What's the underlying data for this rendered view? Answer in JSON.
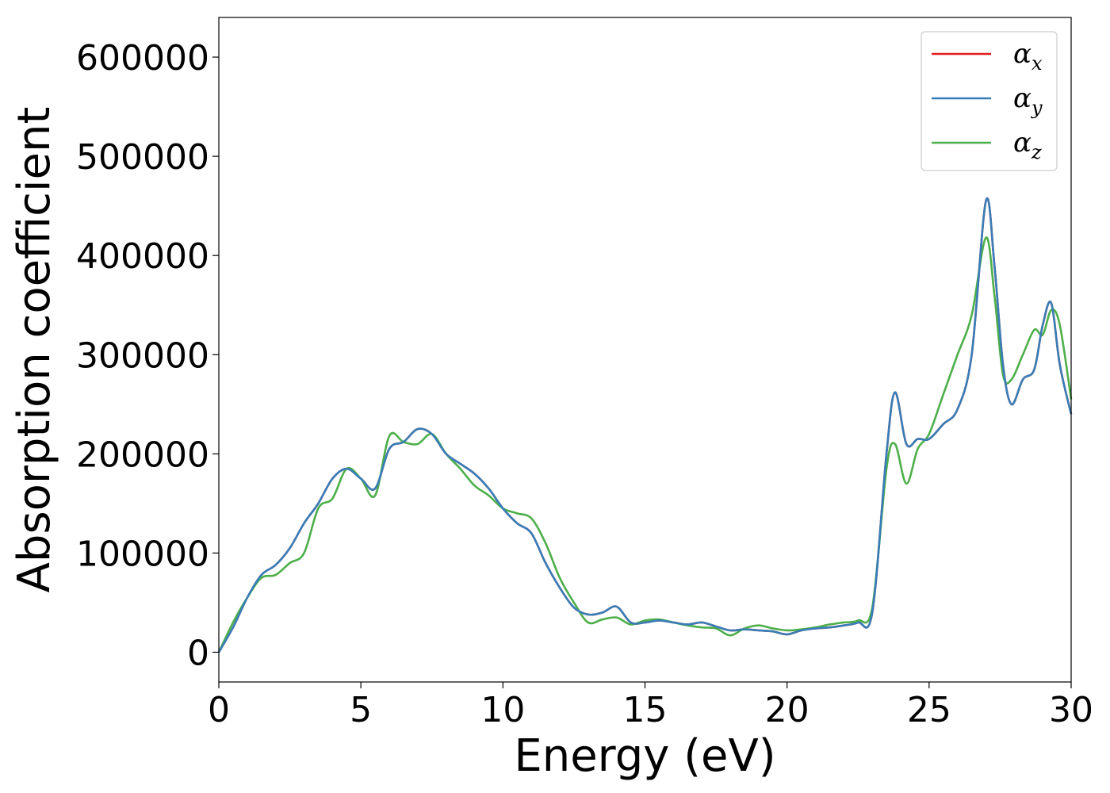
{
  "chart_data": {
    "type": "line",
    "xlabel": "Energy (eV)",
    "ylabel": "Absorption coefficient",
    "xlim": [
      0,
      30
    ],
    "ylim": [
      -30000,
      640000
    ],
    "xticks": [
      0,
      5,
      10,
      15,
      20,
      25,
      30
    ],
    "xtick_labels": [
      "0",
      "5",
      "10",
      "15",
      "20",
      "25",
      "30"
    ],
    "yticks": [
      0,
      100000,
      200000,
      300000,
      400000,
      500000,
      600000
    ],
    "ytick_labels": [
      "0",
      "100000",
      "200000",
      "300000",
      "400000",
      "500000",
      "600000"
    ],
    "grid": false,
    "legend_position": "top-right",
    "series": [
      {
        "name": "α_x",
        "legend_base": "α",
        "legend_sub": "x",
        "color": "#e41a1c",
        "x": [
          0,
          0.5,
          1,
          1.5,
          2,
          2.5,
          3,
          3.5,
          4,
          4.5,
          5,
          5.5,
          6,
          6.5,
          7,
          7.5,
          8,
          8.5,
          9,
          9.5,
          10,
          10.5,
          11,
          11.5,
          12,
          12.5,
          13,
          13.5,
          14,
          14.5,
          15,
          15.5,
          16,
          16.5,
          17,
          17.5,
          18,
          18.5,
          19,
          19.5,
          20,
          20.5,
          21,
          21.5,
          22,
          22.5,
          23,
          23.5,
          23.8,
          24.2,
          24.6,
          25,
          25.5,
          26,
          26.5,
          27,
          27.3,
          27.6,
          27.9,
          28.3,
          28.7,
          29,
          29.3,
          29.6,
          30
        ],
        "y": [
          0,
          25000,
          55000,
          78000,
          88000,
          105000,
          130000,
          150000,
          175000,
          185000,
          175000,
          165000,
          205000,
          212000,
          225000,
          220000,
          200000,
          190000,
          180000,
          165000,
          145000,
          130000,
          120000,
          90000,
          65000,
          45000,
          38000,
          40000,
          46000,
          30000,
          30000,
          32000,
          30000,
          28000,
          30000,
          26000,
          22000,
          23000,
          22000,
          21000,
          18000,
          22000,
          24000,
          25000,
          27000,
          30000,
          40000,
          200000,
          262000,
          210000,
          215000,
          215000,
          230000,
          245000,
          300000,
          455000,
          390000,
          290000,
          250000,
          275000,
          285000,
          330000,
          352000,
          290000,
          240000
        ]
      },
      {
        "name": "α_y",
        "legend_base": "α",
        "legend_sub": "y",
        "color": "#377eb8",
        "x": [
          0,
          0.5,
          1,
          1.5,
          2,
          2.5,
          3,
          3.5,
          4,
          4.5,
          5,
          5.5,
          6,
          6.5,
          7,
          7.5,
          8,
          8.5,
          9,
          9.5,
          10,
          10.5,
          11,
          11.5,
          12,
          12.5,
          13,
          13.5,
          14,
          14.5,
          15,
          15.5,
          16,
          16.5,
          17,
          17.5,
          18,
          18.5,
          19,
          19.5,
          20,
          20.5,
          21,
          21.5,
          22,
          22.5,
          23,
          23.5,
          23.8,
          24.2,
          24.6,
          25,
          25.5,
          26,
          26.5,
          27,
          27.3,
          27.6,
          27.9,
          28.3,
          28.7,
          29,
          29.3,
          29.6,
          30
        ],
        "y": [
          0,
          25000,
          55000,
          78000,
          88000,
          105000,
          130000,
          150000,
          175000,
          185000,
          175000,
          165000,
          205000,
          212000,
          225000,
          220000,
          200000,
          190000,
          180000,
          165000,
          145000,
          130000,
          120000,
          90000,
          65000,
          45000,
          38000,
          40000,
          46000,
          30000,
          30000,
          32000,
          30000,
          28000,
          30000,
          26000,
          22000,
          23000,
          22000,
          21000,
          18000,
          22000,
          24000,
          25000,
          27000,
          30000,
          40000,
          200000,
          262000,
          210000,
          215000,
          215000,
          230000,
          245000,
          300000,
          455000,
          390000,
          290000,
          250000,
          275000,
          285000,
          330000,
          352000,
          290000,
          240000
        ]
      },
      {
        "name": "α_z",
        "legend_base": "α",
        "legend_sub": "z",
        "color": "#4daf4a",
        "x": [
          0,
          0.5,
          1,
          1.5,
          2,
          2.5,
          3,
          3.5,
          4,
          4.5,
          5,
          5.5,
          6,
          6.5,
          7,
          7.5,
          8,
          8.5,
          9,
          9.5,
          10,
          10.5,
          11,
          11.5,
          12,
          12.5,
          13,
          13.5,
          14,
          14.5,
          15,
          15.5,
          16,
          16.5,
          17,
          17.5,
          18,
          18.5,
          19,
          19.5,
          20,
          20.5,
          21,
          21.5,
          22,
          22.5,
          23,
          23.5,
          23.8,
          24.2,
          24.6,
          25,
          25.5,
          26,
          26.5,
          27,
          27.3,
          27.6,
          27.9,
          28.3,
          28.7,
          29,
          29.3,
          29.6,
          30
        ],
        "y": [
          0,
          30000,
          55000,
          75000,
          78000,
          90000,
          100000,
          145000,
          155000,
          185000,
          175000,
          158000,
          218000,
          212000,
          210000,
          220000,
          200000,
          185000,
          168000,
          158000,
          145000,
          140000,
          135000,
          110000,
          75000,
          50000,
          30000,
          33000,
          35000,
          28000,
          32000,
          33000,
          30000,
          27000,
          25000,
          24000,
          17000,
          24000,
          27000,
          24000,
          22000,
          23000,
          25000,
          28000,
          30000,
          32000,
          45000,
          185000,
          210000,
          170000,
          205000,
          220000,
          260000,
          300000,
          340000,
          418000,
          360000,
          280000,
          275000,
          300000,
          325000,
          320000,
          345000,
          330000,
          255000
        ]
      }
    ]
  }
}
